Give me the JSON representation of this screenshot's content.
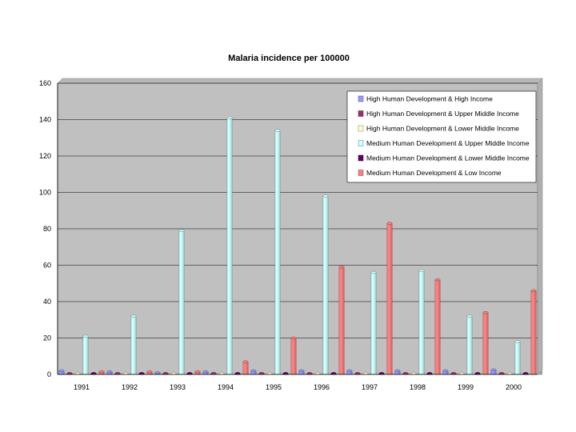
{
  "chart_data": {
    "type": "bar",
    "title": "Malaria incidence per 100000",
    "categories": [
      "1991",
      "1992",
      "1993",
      "1994",
      "1995",
      "1996",
      "1997",
      "1998",
      "1999",
      "2000"
    ],
    "ylim": [
      0,
      160
    ],
    "yticks": [
      "0",
      "20",
      "40",
      "60",
      "80",
      "100",
      "120",
      "140",
      "160"
    ],
    "grid": true,
    "legend_position": "top-right",
    "series": [
      {
        "name": "High Human Development & High Income",
        "color": "#9999ff",
        "values": [
          2,
          1.5,
          1,
          1.5,
          2,
          2,
          2,
          2,
          2,
          2.5
        ]
      },
      {
        "name": "High Human Development & Upper Middle Income",
        "color": "#993366",
        "values": [
          0.5,
          0.5,
          0.5,
          0.5,
          0.5,
          0.5,
          0.5,
          0.5,
          0.5,
          0.5
        ]
      },
      {
        "name": "High Human Development & Lower Middle Income",
        "color": "#ffffcc",
        "values": [
          0.5,
          0.5,
          0.5,
          0.5,
          0.5,
          0.5,
          0.5,
          0.5,
          0.5,
          0.5
        ]
      },
      {
        "name": "Medium Human Development & Upper Middle Income",
        "color": "#ccffff",
        "values": [
          21,
          32,
          79,
          141,
          134,
          98,
          56,
          57,
          32,
          18
        ]
      },
      {
        "name": "Medium Human Development & Lower Middle Income",
        "color": "#660066",
        "values": [
          0.5,
          0.5,
          0.5,
          0.5,
          0.5,
          0.5,
          0.5,
          0.5,
          0.5,
          0.5
        ]
      },
      {
        "name": "Medium Human Development & Low Income",
        "color": "#ff8080",
        "values": [
          1.5,
          1.5,
          1.5,
          7,
          20,
          59,
          83,
          52,
          34,
          46
        ]
      }
    ]
  }
}
